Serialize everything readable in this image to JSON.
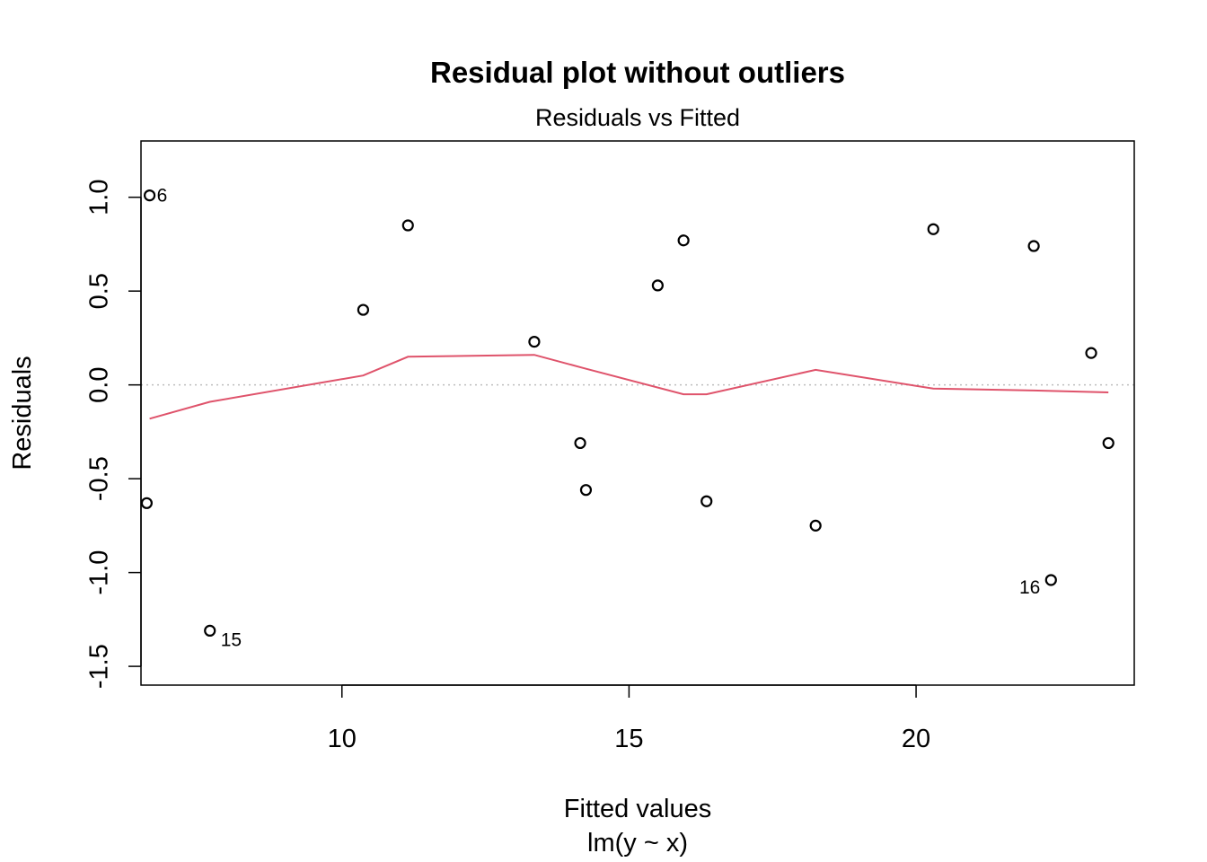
{
  "chart_data": {
    "type": "scatter",
    "title": "Residual plot without outliers",
    "subtitle": "Residuals vs Fitted",
    "xlabel": "Fitted values",
    "xlabel_sub": "lm(y ~ x)",
    "ylabel": "Residuals",
    "xlim": [
      6.5,
      23.8
    ],
    "ylim": [
      -1.6,
      1.3
    ],
    "x_ticks": [
      10,
      15,
      20
    ],
    "x_tick_labels": [
      "10",
      "15",
      "20"
    ],
    "y_ticks": [
      -1.5,
      -1.0,
      -0.5,
      0.0,
      0.5,
      1.0
    ],
    "y_tick_labels": [
      "-1.5",
      "-1.0",
      "-0.5",
      "0.0",
      "0.5",
      "1.0"
    ],
    "points": [
      {
        "x": 6.65,
        "y": 1.01,
        "label": "6"
      },
      {
        "x": 6.6,
        "y": -0.63,
        "label": ""
      },
      {
        "x": 7.7,
        "y": -1.31,
        "label": "15"
      },
      {
        "x": 10.37,
        "y": 0.4,
        "label": ""
      },
      {
        "x": 11.15,
        "y": 0.85,
        "label": ""
      },
      {
        "x": 13.35,
        "y": 0.23,
        "label": ""
      },
      {
        "x": 14.15,
        "y": -0.31,
        "label": ""
      },
      {
        "x": 14.25,
        "y": -0.56,
        "label": ""
      },
      {
        "x": 15.5,
        "y": 0.53,
        "label": ""
      },
      {
        "x": 15.95,
        "y": 0.77,
        "label": ""
      },
      {
        "x": 16.35,
        "y": -0.62,
        "label": ""
      },
      {
        "x": 18.25,
        "y": -0.75,
        "label": ""
      },
      {
        "x": 20.3,
        "y": 0.83,
        "label": ""
      },
      {
        "x": 22.05,
        "y": 0.74,
        "label": ""
      },
      {
        "x": 22.35,
        "y": -1.04,
        "label": "16"
      },
      {
        "x": 23.05,
        "y": 0.17,
        "label": ""
      },
      {
        "x": 23.35,
        "y": -0.31,
        "label": ""
      }
    ],
    "smoother": {
      "name": "",
      "color": "#DF536B",
      "x": [
        6.65,
        7.7,
        10.37,
        11.15,
        13.35,
        14.2,
        15.95,
        16.35,
        18.25,
        20.3,
        22.05,
        23.35
      ],
      "y": [
        -0.18,
        -0.09,
        0.05,
        0.15,
        0.16,
        0.09,
        -0.05,
        -0.05,
        0.08,
        -0.02,
        -0.03,
        -0.04
      ]
    },
    "reference_line": {
      "y": 0,
      "color": "#bebebe",
      "style": "dotted"
    },
    "point_color": "#000000",
    "grid": false,
    "legend": false
  }
}
